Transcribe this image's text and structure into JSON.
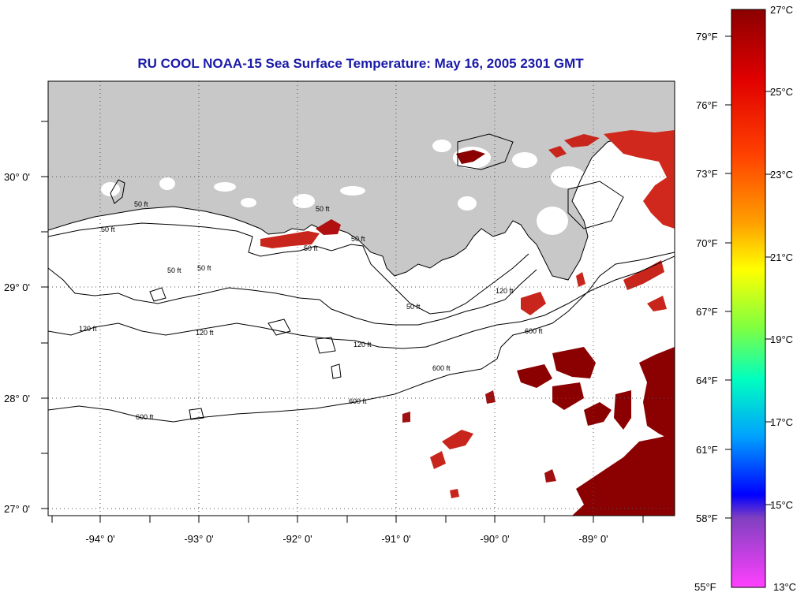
{
  "title": "RU COOL  NOAA-15  Sea Surface Temperature:  May 16, 2005 2301 GMT",
  "colors": {
    "land": "#c8c8c8",
    "water_clear": "#ffffff",
    "sst_warm": "#c8261c",
    "sst_hot": "#8b0000",
    "title": "#1a1aa8"
  },
  "longitude_labels": [
    "-94° 0'",
    "-93° 0'",
    "-92° 0'",
    "-91° 0'",
    "-90° 0'",
    "-89° 0'"
  ],
  "latitude_labels": [
    "30° 0'",
    "29° 0'",
    "28° 0'",
    "27° 0'"
  ],
  "contour_labels": [
    {
      "text": "50 ft"
    },
    {
      "text": "50 ft"
    },
    {
      "text": "50 ft"
    },
    {
      "text": "50 ft"
    },
    {
      "text": "50 ft"
    },
    {
      "text": "50 ft"
    },
    {
      "text": "50 ft"
    },
    {
      "text": "50 ft"
    },
    {
      "text": "120 ft"
    },
    {
      "text": "120 ft"
    },
    {
      "text": "120 ft"
    },
    {
      "text": "120 ft"
    },
    {
      "text": "600 ft"
    },
    {
      "text": "600 ft"
    },
    {
      "text": "600 ft"
    },
    {
      "text": "600 ft"
    }
  ],
  "colorbar": {
    "fahrenheit_labels": [
      "79°F",
      "76°F",
      "73°F",
      "70°F",
      "67°F",
      "64°F",
      "61°F",
      "58°F",
      "55°F"
    ],
    "celsius_labels": [
      "27°C",
      "25°C",
      "23°C",
      "21°C",
      "19°C",
      "17°C",
      "15°C",
      "13°C"
    ],
    "gradient_colors": [
      "#8b0000",
      "#ff0000",
      "#ff8000",
      "#ffff00",
      "#80ff40",
      "#00ffc0",
      "#0080ff",
      "#0000ff",
      "#8040c0",
      "#ff40ff"
    ]
  }
}
